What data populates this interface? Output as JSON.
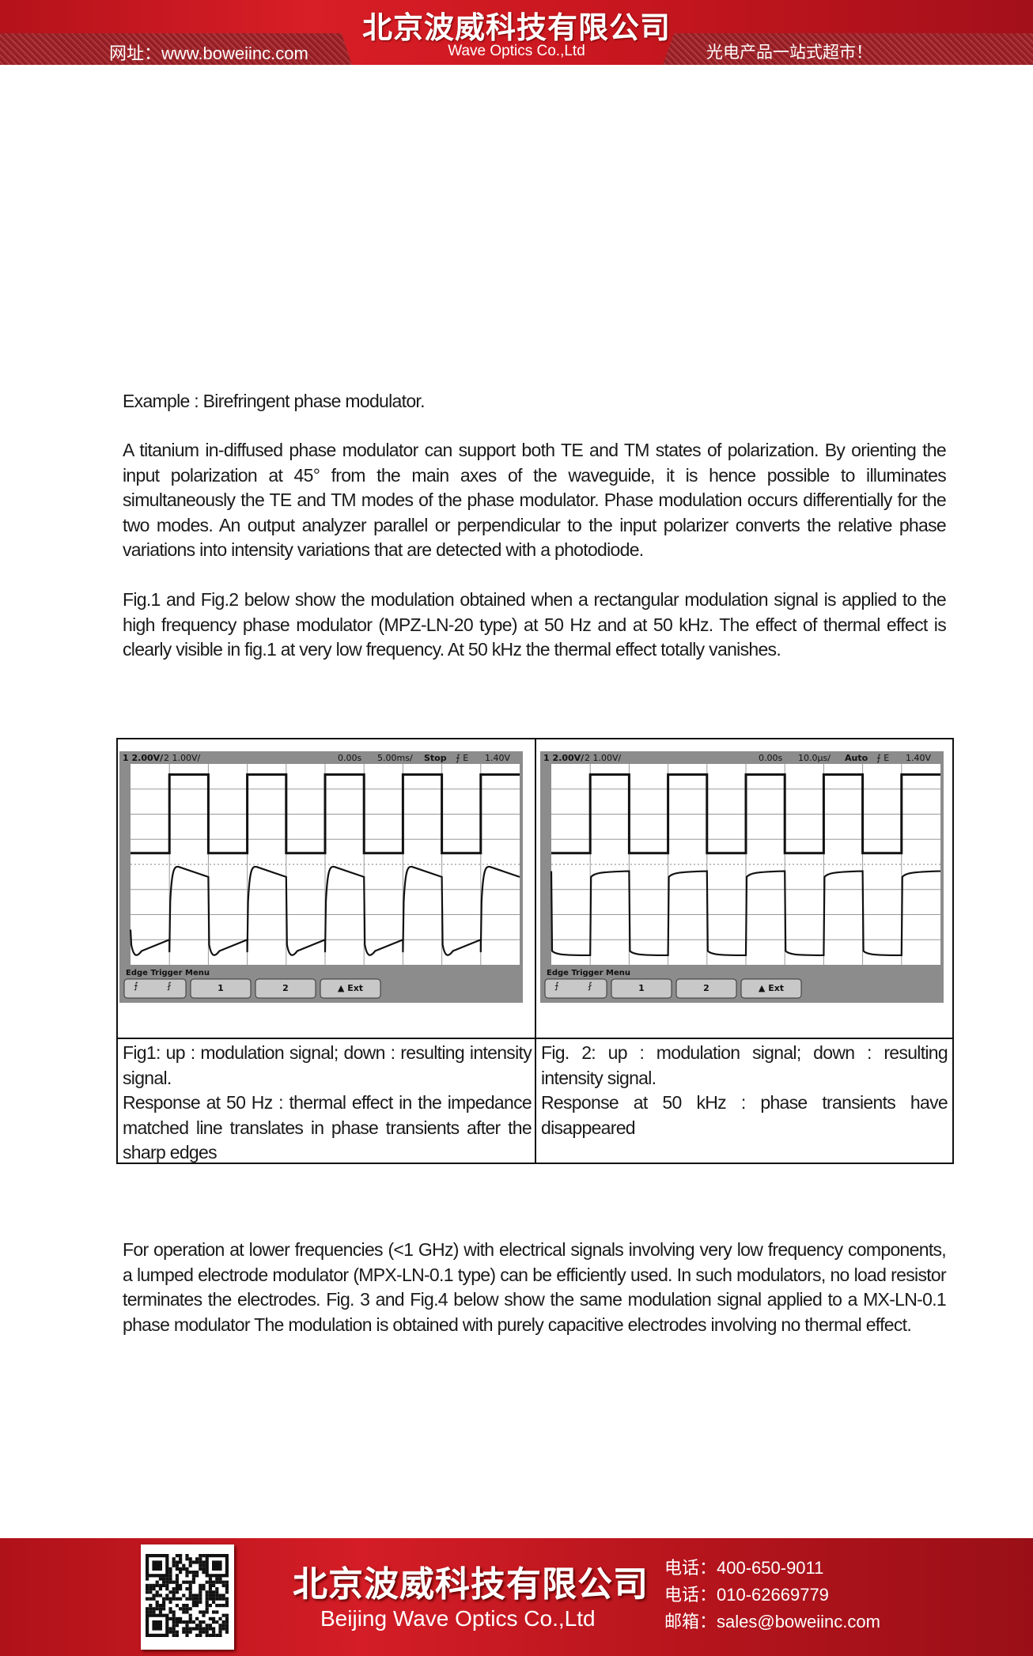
{
  "header": {
    "company_cn": "北京波威科技有限公司",
    "company_en": "Wave Optics Co.,Ltd",
    "website": "网址：www.boweiinc.com",
    "slogan": "光电产品一站式超市！",
    "colors": {
      "brand_red": "#d81e26"
    }
  },
  "body": {
    "example_title": "Example : Birefringent phase modulator.",
    "paragraph1": "A titanium in-diffused phase modulator can support both TE and TM states of polarization. By orienting the input polarization at 45° from the main axes of the waveguide, it is hence possible to illuminates simultaneously the TE and TM modes of the phase modulator. Phase modulation occurs differentially for the two modes. An output analyzer parallel or perpendicular to the input polarizer converts the relative phase variations into intensity variations that are detected with a photodiode.",
    "paragraph2": "Fig.1 and Fig.2 below show the modulation obtained when a rectangular modulation signal is applied to the high frequency phase modulator (MPZ-LN-20 type) at 50 Hz and at 50 kHz. The effect of thermal effect is clearly visible in fig.1 at very low frequency. At 50 kHz the thermal effect totally vanishes.",
    "paragraph3": "For operation at lower frequencies (<1 GHz) with electrical signals involving very low frequency components, a lumped electrode modulator (MPX-LN-0.1 type) can be efficiently used. In such modulators, no load resistor terminates the electrodes. Fig. 3 and Fig.4 below show the same modulation signal applied to a MX-LN-0.1 phase modulator The modulation is obtained with purely capacitive electrodes involving no thermal effect."
  },
  "figures": [
    {
      "caption_line1": "Fig1: up : modulation signal; down  : resulting intensity signal.",
      "caption_line2": "Response at 50 Hz : thermal effect in the impedance matched line translates in phase transients after the sharp edges",
      "scope": {
        "ch1_scale": "2.00V/",
        "ch2_scale": "1.00V/",
        "time_offset": "0.00s",
        "timebase": "5.00ms/",
        "run_state": "Stop",
        "trigger_source": "E",
        "trigger_level": "1.40V",
        "menu_title": "Edge Trigger Menu",
        "buttons": [
          "1",
          "2",
          "Ext"
        ],
        "trace_type": "thermal"
      }
    },
    {
      "caption_line1": "Fig. 2: up : modulation signal; down  : resulting intensity signal.",
      "caption_line2": " Response at 50 kHz : phase transients have disappeared",
      "scope": {
        "ch1_scale": "2.00V/",
        "ch2_scale": "1.00V/",
        "time_offset": "0.00s",
        "timebase": "10.0µs/",
        "run_state": "Auto",
        "trigger_source": "E",
        "trigger_level": "1.40V",
        "menu_title": "Edge Trigger Menu",
        "buttons": [
          "1",
          "2",
          "Ext"
        ],
        "trace_type": "clean"
      }
    }
  ],
  "footer": {
    "company_cn": "北京波威科技有限公司",
    "company_en": "Beijing Wave Optics Co.,Ltd",
    "phone1": "电话：400-650-9011",
    "phone2": "电话：010-62669779",
    "email": "邮箱：sales@boweiinc.com"
  }
}
